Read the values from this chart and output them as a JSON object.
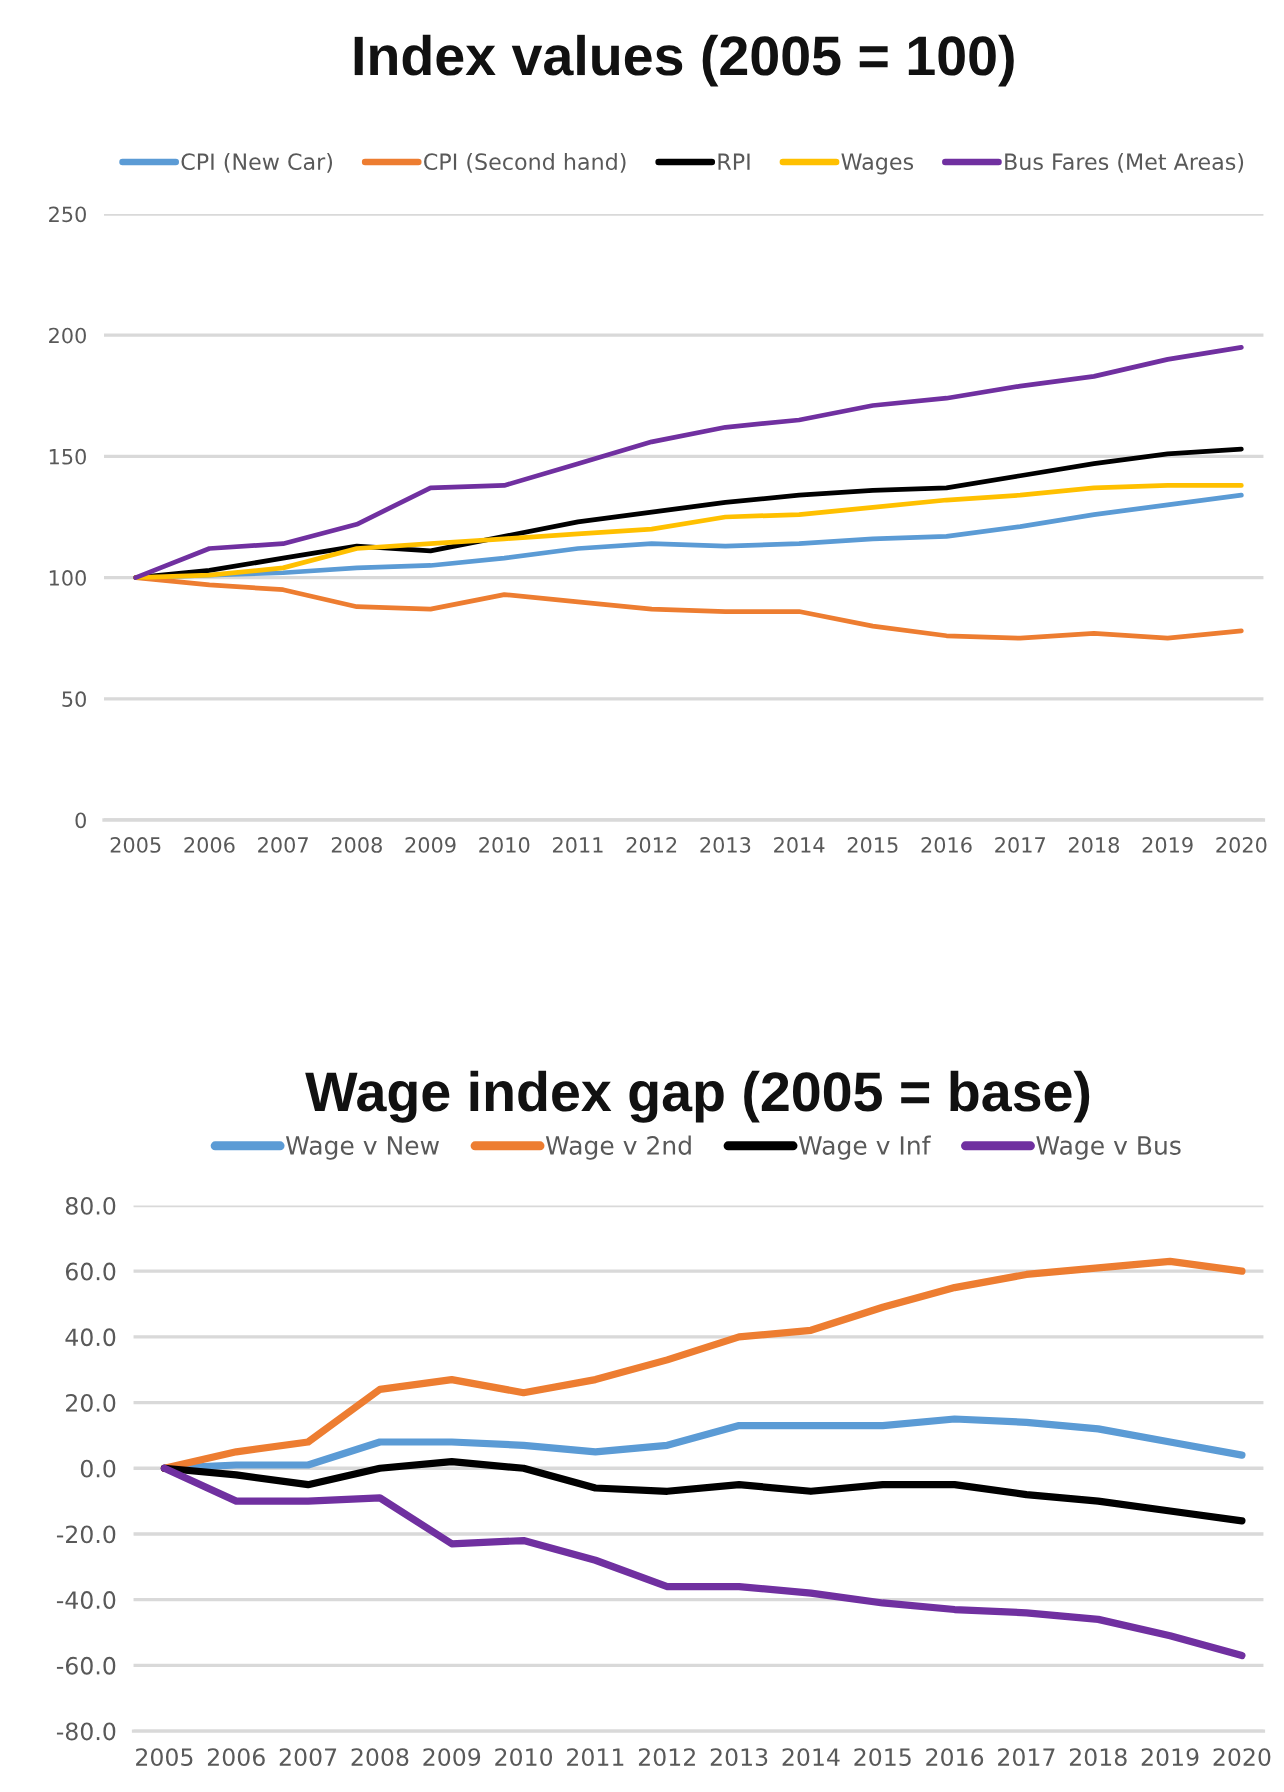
{
  "chart_data": [
    {
      "type": "line",
      "title": "Index values (2005 = 100)",
      "categories": [
        "2005",
        "2006",
        "2007",
        "2008",
        "2009",
        "2010",
        "2011",
        "2012",
        "2013",
        "2014",
        "2015",
        "2016",
        "2017",
        "2018",
        "2019",
        "2020"
      ],
      "series": [
        {
          "name": "CPI (New Car)",
          "color": "#5b9bd5",
          "values": [
            100,
            101,
            102,
            104,
            105,
            108,
            112,
            114,
            113,
            114,
            116,
            117,
            121,
            126,
            130,
            134
          ]
        },
        {
          "name": "CPI (Second hand)",
          "color": "#ed7d31",
          "values": [
            100,
            97,
            95,
            88,
            87,
            93,
            90,
            87,
            86,
            86,
            80,
            76,
            75,
            77,
            75,
            78
          ]
        },
        {
          "name": "RPI",
          "color": "#000000",
          "values": [
            100,
            103,
            108,
            113,
            111,
            117,
            123,
            127,
            131,
            134,
            136,
            137,
            142,
            147,
            151,
            153
          ]
        },
        {
          "name": "Wages",
          "color": "#ffc000",
          "values": [
            100,
            101,
            104,
            112,
            114,
            116,
            118,
            120,
            125,
            126,
            129,
            132,
            134,
            137,
            138,
            138
          ]
        },
        {
          "name": "Bus Fares (Met Areas)",
          "color": "#7030a0",
          "values": [
            100,
            112,
            114,
            122,
            137,
            138,
            147,
            156,
            162,
            165,
            171,
            174,
            179,
            183,
            190,
            195
          ]
        }
      ],
      "ylim": [
        0,
        250
      ],
      "yticks": [
        0,
        50,
        100,
        150,
        200,
        250
      ],
      "grid": "y",
      "legend": "top"
    },
    {
      "type": "line",
      "title": "Wage index gap (2005 = base)",
      "categories": [
        "2005",
        "2006",
        "2007",
        "2008",
        "2009",
        "2010",
        "2011",
        "2012",
        "2013",
        "2014",
        "2015",
        "2016",
        "2017",
        "2018",
        "2019",
        "2020"
      ],
      "series": [
        {
          "name": "Wage v New",
          "color": "#5b9bd5",
          "values": [
            0,
            1,
            1,
            8,
            8,
            7,
            5,
            7,
            13,
            13,
            13,
            15,
            14,
            12,
            8,
            4
          ]
        },
        {
          "name": "Wage v 2nd",
          "color": "#ed7d31",
          "values": [
            0,
            5,
            8,
            24,
            27,
            23,
            27,
            33,
            40,
            42,
            49,
            55,
            59,
            61,
            63,
            60
          ]
        },
        {
          "name": "Wage v Inf",
          "color": "#000000",
          "values": [
            0,
            -2,
            -5,
            0,
            2,
            0,
            -6,
            -7,
            -5,
            -7,
            -5,
            -5,
            -8,
            -10,
            -13,
            -16
          ]
        },
        {
          "name": "Wage v Bus",
          "color": "#7030a0",
          "values": [
            0,
            -10,
            -10,
            -9,
            -23,
            -22,
            -28,
            -36,
            -36,
            -38,
            -41,
            -43,
            -44,
            -46,
            -51,
            -57
          ]
        }
      ],
      "ylim": [
        -80,
        80
      ],
      "yticks": [
        {
          "value": -80,
          "label": "-80.0"
        },
        {
          "value": -60,
          "label": "-60.0"
        },
        {
          "value": -40,
          "label": "-40.0"
        },
        {
          "value": -20,
          "label": "-20.0"
        },
        {
          "value": 0,
          "label": "0.0"
        },
        {
          "value": 20,
          "label": "20.0"
        },
        {
          "value": 40,
          "label": "40.0"
        },
        {
          "value": 60,
          "label": "60.0"
        },
        {
          "value": 80,
          "label": "80.0"
        }
      ],
      "grid": "y",
      "legend": "top"
    }
  ]
}
